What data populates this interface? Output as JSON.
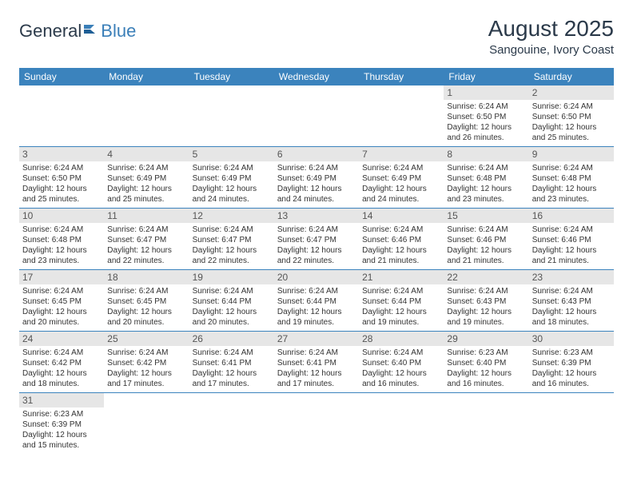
{
  "logo": {
    "part1": "General",
    "part2": "Blue"
  },
  "title": "August 2025",
  "location": "Sangouine, Ivory Coast",
  "header_bg": "#3b83bd",
  "header_fg": "#ffffff",
  "daynum_bg": "#e6e6e6",
  "cell_border": "#3b83bd",
  "day_headers": [
    "Sunday",
    "Monday",
    "Tuesday",
    "Wednesday",
    "Thursday",
    "Friday",
    "Saturday"
  ],
  "weeks": [
    [
      null,
      null,
      null,
      null,
      null,
      {
        "n": "1",
        "sunrise": "6:24 AM",
        "sunset": "6:50 PM",
        "daylight": "12 hours and 26 minutes."
      },
      {
        "n": "2",
        "sunrise": "6:24 AM",
        "sunset": "6:50 PM",
        "daylight": "12 hours and 25 minutes."
      }
    ],
    [
      {
        "n": "3",
        "sunrise": "6:24 AM",
        "sunset": "6:50 PM",
        "daylight": "12 hours and 25 minutes."
      },
      {
        "n": "4",
        "sunrise": "6:24 AM",
        "sunset": "6:49 PM",
        "daylight": "12 hours and 25 minutes."
      },
      {
        "n": "5",
        "sunrise": "6:24 AM",
        "sunset": "6:49 PM",
        "daylight": "12 hours and 24 minutes."
      },
      {
        "n": "6",
        "sunrise": "6:24 AM",
        "sunset": "6:49 PM",
        "daylight": "12 hours and 24 minutes."
      },
      {
        "n": "7",
        "sunrise": "6:24 AM",
        "sunset": "6:49 PM",
        "daylight": "12 hours and 24 minutes."
      },
      {
        "n": "8",
        "sunrise": "6:24 AM",
        "sunset": "6:48 PM",
        "daylight": "12 hours and 23 minutes."
      },
      {
        "n": "9",
        "sunrise": "6:24 AM",
        "sunset": "6:48 PM",
        "daylight": "12 hours and 23 minutes."
      }
    ],
    [
      {
        "n": "10",
        "sunrise": "6:24 AM",
        "sunset": "6:48 PM",
        "daylight": "12 hours and 23 minutes."
      },
      {
        "n": "11",
        "sunrise": "6:24 AM",
        "sunset": "6:47 PM",
        "daylight": "12 hours and 22 minutes."
      },
      {
        "n": "12",
        "sunrise": "6:24 AM",
        "sunset": "6:47 PM",
        "daylight": "12 hours and 22 minutes."
      },
      {
        "n": "13",
        "sunrise": "6:24 AM",
        "sunset": "6:47 PM",
        "daylight": "12 hours and 22 minutes."
      },
      {
        "n": "14",
        "sunrise": "6:24 AM",
        "sunset": "6:46 PM",
        "daylight": "12 hours and 21 minutes."
      },
      {
        "n": "15",
        "sunrise": "6:24 AM",
        "sunset": "6:46 PM",
        "daylight": "12 hours and 21 minutes."
      },
      {
        "n": "16",
        "sunrise": "6:24 AM",
        "sunset": "6:46 PM",
        "daylight": "12 hours and 21 minutes."
      }
    ],
    [
      {
        "n": "17",
        "sunrise": "6:24 AM",
        "sunset": "6:45 PM",
        "daylight": "12 hours and 20 minutes."
      },
      {
        "n": "18",
        "sunrise": "6:24 AM",
        "sunset": "6:45 PM",
        "daylight": "12 hours and 20 minutes."
      },
      {
        "n": "19",
        "sunrise": "6:24 AM",
        "sunset": "6:44 PM",
        "daylight": "12 hours and 20 minutes."
      },
      {
        "n": "20",
        "sunrise": "6:24 AM",
        "sunset": "6:44 PM",
        "daylight": "12 hours and 19 minutes."
      },
      {
        "n": "21",
        "sunrise": "6:24 AM",
        "sunset": "6:44 PM",
        "daylight": "12 hours and 19 minutes."
      },
      {
        "n": "22",
        "sunrise": "6:24 AM",
        "sunset": "6:43 PM",
        "daylight": "12 hours and 19 minutes."
      },
      {
        "n": "23",
        "sunrise": "6:24 AM",
        "sunset": "6:43 PM",
        "daylight": "12 hours and 18 minutes."
      }
    ],
    [
      {
        "n": "24",
        "sunrise": "6:24 AM",
        "sunset": "6:42 PM",
        "daylight": "12 hours and 18 minutes."
      },
      {
        "n": "25",
        "sunrise": "6:24 AM",
        "sunset": "6:42 PM",
        "daylight": "12 hours and 17 minutes."
      },
      {
        "n": "26",
        "sunrise": "6:24 AM",
        "sunset": "6:41 PM",
        "daylight": "12 hours and 17 minutes."
      },
      {
        "n": "27",
        "sunrise": "6:24 AM",
        "sunset": "6:41 PM",
        "daylight": "12 hours and 17 minutes."
      },
      {
        "n": "28",
        "sunrise": "6:24 AM",
        "sunset": "6:40 PM",
        "daylight": "12 hours and 16 minutes."
      },
      {
        "n": "29",
        "sunrise": "6:23 AM",
        "sunset": "6:40 PM",
        "daylight": "12 hours and 16 minutes."
      },
      {
        "n": "30",
        "sunrise": "6:23 AM",
        "sunset": "6:39 PM",
        "daylight": "12 hours and 16 minutes."
      }
    ],
    [
      {
        "n": "31",
        "sunrise": "6:23 AM",
        "sunset": "6:39 PM",
        "daylight": "12 hours and 15 minutes."
      },
      null,
      null,
      null,
      null,
      null,
      null
    ]
  ],
  "labels": {
    "sunrise": "Sunrise: ",
    "sunset": "Sunset: ",
    "daylight": "Daylight: "
  }
}
